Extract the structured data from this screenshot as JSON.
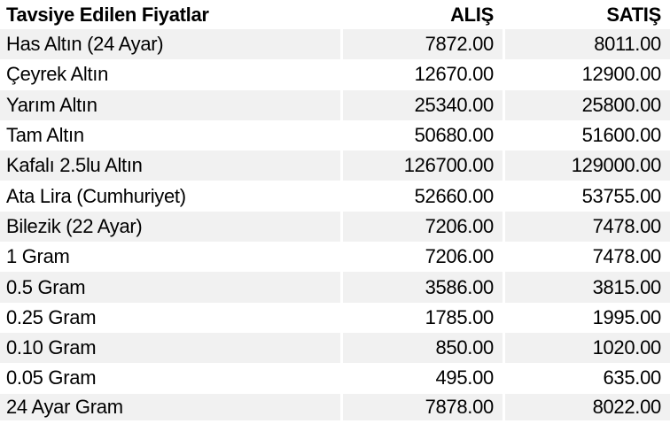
{
  "chart_data": {
    "type": "table",
    "title": "Tavsiye Edilen Fiyatlar",
    "columns": [
      "Tavsiye Edilen Fiyatlar",
      "ALIŞ",
      "SATIŞ"
    ],
    "rows": [
      [
        "Has Altın (24 Ayar)",
        "7872.00",
        "8011.00"
      ],
      [
        "Çeyrek Altın",
        "12670.00",
        "12900.00"
      ],
      [
        "Yarım Altın",
        "25340.00",
        "25800.00"
      ],
      [
        "Tam Altın",
        "50680.00",
        "51600.00"
      ],
      [
        "Kafalı 2.5lu Altın",
        "126700.00",
        "129000.00"
      ],
      [
        "Ata Lira (Cumhuriyet)",
        "52660.00",
        "53755.00"
      ],
      [
        "Bilezik (22 Ayar)",
        "7206.00",
        "7478.00"
      ],
      [
        "1 Gram",
        "7206.00",
        "7478.00"
      ],
      [
        "0.5 Gram",
        "3586.00",
        "3815.00"
      ],
      [
        "0.25 Gram",
        "1785.00",
        "1995.00"
      ],
      [
        "0.10 Gram",
        "850.00",
        "1020.00"
      ],
      [
        "0.05 Gram",
        "495.00",
        "635.00"
      ],
      [
        "24 Ayar Gram",
        "7878.00",
        "8022.00"
      ]
    ],
    "layout": {
      "striped_rows": "odd",
      "stripe_color": "#f1f1f1",
      "background_color": "#ffffff",
      "text_color": "#000000",
      "header_weight": "bold",
      "value_alignment": "right",
      "grid": "off"
    }
  }
}
